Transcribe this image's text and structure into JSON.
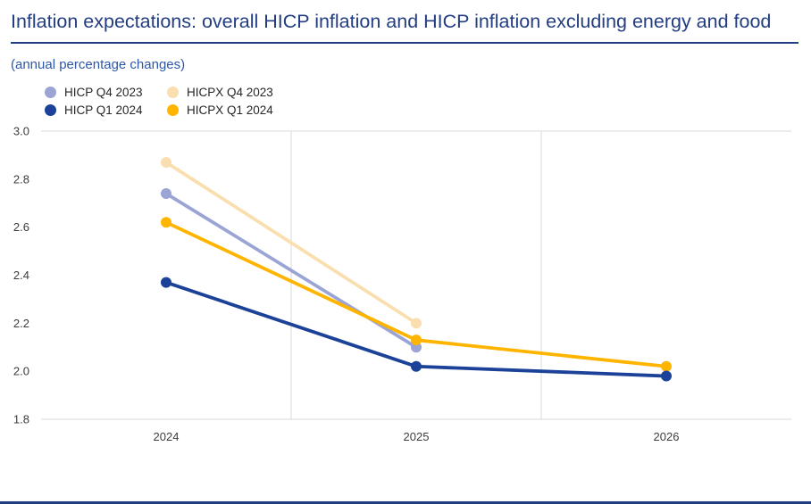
{
  "header": {
    "title": "Inflation expectations: overall HICP inflation and HICP inflation excluding energy and food",
    "subtitle": "(annual percentage changes)"
  },
  "colors": {
    "title_text": "#233d82",
    "divider": "#233d82",
    "axis_text": "#3c3c3c",
    "gridline": "#d9d9d9",
    "background": "#ffffff"
  },
  "legend": {
    "items": [
      {
        "label": "HICP Q4 2023",
        "color": "#9aa5d6"
      },
      {
        "label": "HICPX Q4 2023",
        "color": "#f9dfb0"
      },
      {
        "label": "HICP Q1 2024",
        "color": "#1b4298"
      },
      {
        "label": "HICPX Q1 2024",
        "color": "#ffb400"
      }
    ]
  },
  "chart_data": {
    "type": "line",
    "title": "Inflation expectations: overall HICP inflation and HICP inflation excluding energy and food",
    "subtitle": "(annual percentage changes)",
    "categories": [
      "2024",
      "2025",
      "2026"
    ],
    "series": [
      {
        "name": "HICPX Q4 2023",
        "color": "#f9dfb0",
        "values": [
          2.87,
          2.2,
          null
        ]
      },
      {
        "name": "HICP Q4 2023",
        "color": "#9aa5d6",
        "values": [
          2.74,
          2.1,
          null
        ]
      },
      {
        "name": "HICPX Q1 2024",
        "color": "#ffb400",
        "values": [
          2.62,
          2.13,
          2.02
        ]
      },
      {
        "name": "HICP Q1 2024",
        "color": "#1b4298",
        "values": [
          2.37,
          2.02,
          1.98
        ]
      }
    ],
    "xlabel": "",
    "ylabel": "",
    "ylim": [
      1.8,
      3.0
    ],
    "ytick_step": 0.2,
    "yticks": [
      "1.8",
      "2.0",
      "2.2",
      "2.4",
      "2.6",
      "2.8",
      "3.0"
    ],
    "grid": "vertical-band-boundaries-plus-top-bottom",
    "legend_position": "top-left",
    "marker": "circle"
  }
}
